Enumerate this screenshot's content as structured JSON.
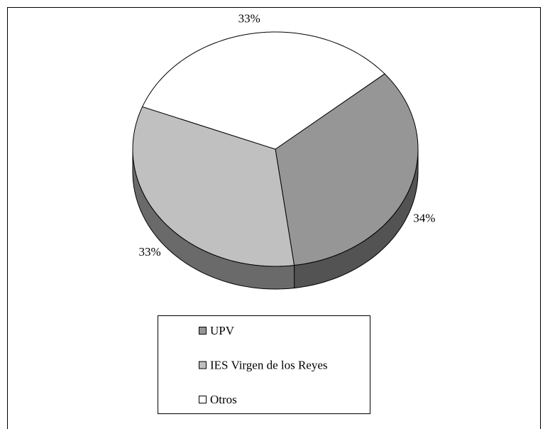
{
  "chart_data": {
    "type": "pie",
    "categories": [
      "UPV",
      "IES Virgen de los Reyes",
      "Otros"
    ],
    "values": [
      34,
      33,
      33
    ],
    "value_labels": [
      "34%",
      "33%",
      "33%"
    ],
    "colors": [
      "#969696",
      "#c0c0c0",
      "#ffffff"
    ],
    "legend": "bottom"
  }
}
